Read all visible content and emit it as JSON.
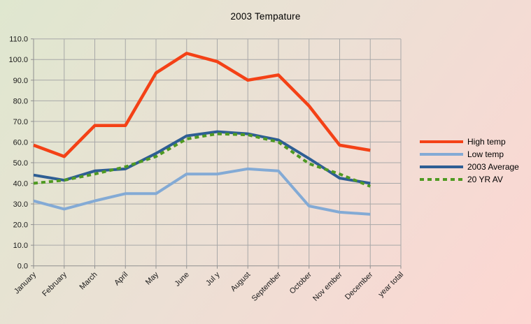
{
  "title": "2003 Tempature",
  "colors": {
    "background_top_left": "#dfe7cf",
    "background_middle": "#ece0d5",
    "background_bottom_right": "#fdd6d2",
    "gridline": "#a8a8a8",
    "axis_line": "#8f8f8f",
    "text": "#1a1a1a",
    "high_temp": "#f44116",
    "low_temp": "#83aad5",
    "avg_2003": "#2e5e94",
    "avg_20yr": "#4f9a22"
  },
  "chart_data": {
    "type": "line",
    "title": "2003 Tempature",
    "categories": [
      "January",
      "February",
      "March",
      "April",
      "May",
      "June",
      "Jul y",
      "August",
      "September",
      "October",
      "Nov ember",
      "December",
      "year total"
    ],
    "series": [
      {
        "name": "High temp",
        "color": "#f44116",
        "style": "solid",
        "width": 4.5,
        "values": [
          58.5,
          53,
          68,
          68,
          93.5,
          103,
          99,
          90,
          92.5,
          77.5,
          58.5,
          56
        ]
      },
      {
        "name": "Low temp",
        "color": "#83aad5",
        "style": "solid",
        "width": 4,
        "values": [
          31.5,
          27.5,
          31.5,
          35,
          35,
          44.5,
          44.5,
          47,
          46,
          29,
          26,
          25
        ]
      },
      {
        "name": "2003 Average",
        "color": "#2e5e94",
        "style": "solid",
        "width": 4,
        "values": [
          44,
          41.5,
          46,
          47,
          54.5,
          63,
          65,
          64,
          61,
          52,
          42.5,
          40
        ]
      },
      {
        "name": "20 YR AV",
        "color": "#4f9a22",
        "style": "dashed",
        "width": 4,
        "values": [
          40,
          41.5,
          44.5,
          48,
          53,
          61.5,
          64,
          63.5,
          60,
          49.5,
          44.5,
          38.5
        ]
      }
    ],
    "ylim": [
      0,
      110
    ],
    "ytick_step": 10,
    "y_tick_labels": [
      "0.0",
      "10.0",
      "20.0",
      "30.0",
      "40.0",
      "50.0",
      "60.0",
      "70.0",
      "80.0",
      "90.0",
      "100.0",
      "110.0"
    ],
    "grid": true,
    "legend_position": "right"
  }
}
